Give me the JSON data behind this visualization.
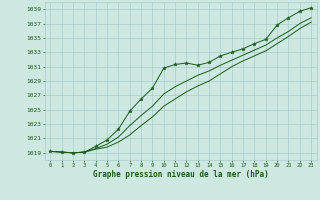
{
  "title": "Graphe pression niveau de la mer (hPa)",
  "background_color": "#cce8e0",
  "grid_color": "#aacccc",
  "line_color": "#1a5c1a",
  "marker_color": "#1a5c1a",
  "xlabel": "Graphe pression niveau de la mer (hPa)",
  "xlim": [
    -0.5,
    23.5
  ],
  "ylim": [
    1018.0,
    1040.0
  ],
  "yticks": [
    1019,
    1021,
    1023,
    1025,
    1027,
    1029,
    1031,
    1033,
    1035,
    1037,
    1039
  ],
  "xticks": [
    0,
    1,
    2,
    3,
    4,
    5,
    6,
    7,
    8,
    9,
    10,
    11,
    12,
    13,
    14,
    15,
    16,
    17,
    18,
    19,
    20,
    21,
    22,
    23
  ],
  "hours": [
    0,
    1,
    2,
    3,
    4,
    5,
    6,
    7,
    8,
    9,
    10,
    11,
    12,
    13,
    14,
    15,
    16,
    17,
    18,
    19,
    20,
    21,
    22,
    23
  ],
  "pressure_main": [
    1019.2,
    1019.1,
    1019.0,
    1019.1,
    1019.9,
    1020.8,
    1022.3,
    1024.8,
    1026.5,
    1028.0,
    1030.8,
    1031.3,
    1031.5,
    1031.2,
    1031.6,
    1032.5,
    1033.0,
    1033.5,
    1034.2,
    1034.8,
    1036.8,
    1037.8,
    1038.7,
    1039.2
  ],
  "pressure_line2": [
    1019.2,
    1019.1,
    1019.0,
    1019.1,
    1019.5,
    1019.8,
    1020.5,
    1021.5,
    1022.8,
    1024.0,
    1025.5,
    1026.5,
    1027.5,
    1028.3,
    1029.0,
    1030.0,
    1031.0,
    1031.8,
    1032.5,
    1033.2,
    1034.2,
    1035.2,
    1036.3,
    1037.2
  ],
  "pressure_line3": [
    1019.2,
    1019.1,
    1019.0,
    1019.1,
    1019.6,
    1020.2,
    1021.2,
    1022.8,
    1024.2,
    1025.5,
    1027.2,
    1028.2,
    1029.0,
    1029.8,
    1030.4,
    1031.2,
    1031.9,
    1032.6,
    1033.3,
    1034.0,
    1035.0,
    1035.9,
    1037.0,
    1037.8
  ]
}
